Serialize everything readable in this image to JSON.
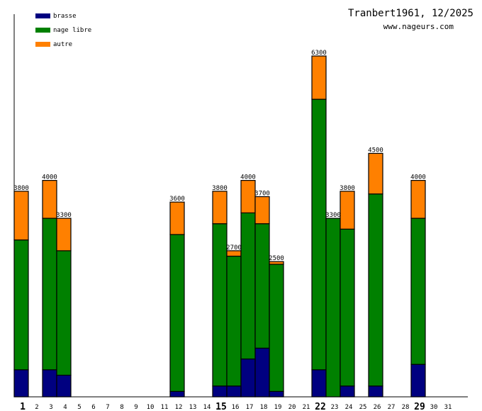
{
  "chart_data": {
    "type": "bar",
    "stacked": true,
    "title": "Tranbert1961, 12/2025",
    "subtitle": "www.nageurs.com",
    "xlabel": "",
    "ylabel": "",
    "ylim": [
      0,
      6300
    ],
    "legend_position": "top-left",
    "categories": [
      "1",
      "2",
      "3",
      "4",
      "5",
      "6",
      "7",
      "8",
      "9",
      "10",
      "11",
      "12",
      "13",
      "14",
      "15",
      "16",
      "17",
      "18",
      "19",
      "20",
      "21",
      "22",
      "23",
      "24",
      "25",
      "26",
      "27",
      "28",
      "29",
      "30",
      "31"
    ],
    "highlighted_categories": [
      "1",
      "15",
      "22",
      "29"
    ],
    "series": [
      {
        "name": "brasse",
        "color": "#000080",
        "values": [
          500,
          0,
          500,
          400,
          0,
          0,
          0,
          0,
          0,
          0,
          0,
          100,
          0,
          0,
          200,
          200,
          700,
          900,
          100,
          0,
          0,
          500,
          0,
          200,
          0,
          200,
          0,
          0,
          600,
          0,
          0
        ]
      },
      {
        "name": "nage libre",
        "color": "#008000",
        "values": [
          2400,
          0,
          2800,
          2300,
          0,
          0,
          0,
          0,
          0,
          0,
          0,
          2900,
          0,
          0,
          3000,
          2400,
          2700,
          2300,
          2350,
          0,
          0,
          5000,
          3300,
          2900,
          0,
          3550,
          0,
          0,
          2700,
          0,
          0
        ]
      },
      {
        "name": "autre",
        "color": "#ff8000",
        "values": [
          900,
          0,
          700,
          600,
          0,
          0,
          0,
          0,
          0,
          0,
          0,
          600,
          0,
          0,
          600,
          100,
          600,
          500,
          50,
          0,
          0,
          800,
          0,
          700,
          0,
          750,
          0,
          0,
          700,
          0,
          0
        ]
      }
    ],
    "totals": [
      3800,
      0,
      4000,
      3300,
      0,
      0,
      0,
      0,
      0,
      0,
      0,
      3600,
      0,
      0,
      3800,
      2700,
      4000,
      3700,
      2500,
      0,
      0,
      6300,
      3300,
      3800,
      0,
      4500,
      0,
      0,
      4000,
      0,
      0
    ]
  }
}
